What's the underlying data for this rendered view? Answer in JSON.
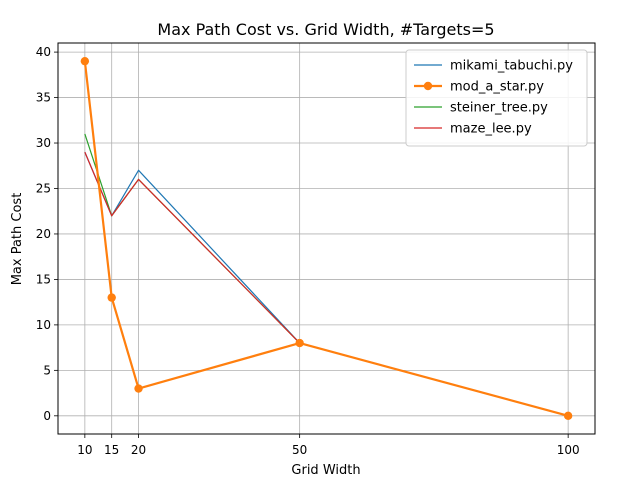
{
  "chart_data": {
    "type": "line",
    "title": "Max Path Cost vs. Grid Width, #Targets=5",
    "xlabel": "Grid Width",
    "ylabel": "Max Path Cost",
    "x": [
      10,
      15,
      20,
      50,
      100
    ],
    "xticks": [
      10,
      15,
      20,
      50,
      100
    ],
    "yticks": [
      0,
      5,
      10,
      15,
      20,
      25,
      30,
      35,
      40
    ],
    "xlim": [
      5,
      105
    ],
    "ylim": [
      -2,
      41
    ],
    "grid": true,
    "legend_position": "top-right",
    "series": [
      {
        "name": "mikami_tabuchi.py",
        "values": [
          29,
          22,
          27,
          8,
          0
        ],
        "color": "#1f77b4",
        "marker": false
      },
      {
        "name": "mod_a_star.py",
        "values": [
          39,
          13,
          3,
          8,
          0
        ],
        "color": "#ff7f0e",
        "marker": true
      },
      {
        "name": "steiner_tree.py",
        "values": [
          31,
          22,
          26,
          8,
          0
        ],
        "color": "#2ca02c",
        "marker": false
      },
      {
        "name": "maze_lee.py",
        "values": [
          29,
          22,
          26,
          8,
          0
        ],
        "color": "#d62728",
        "marker": false
      }
    ]
  }
}
